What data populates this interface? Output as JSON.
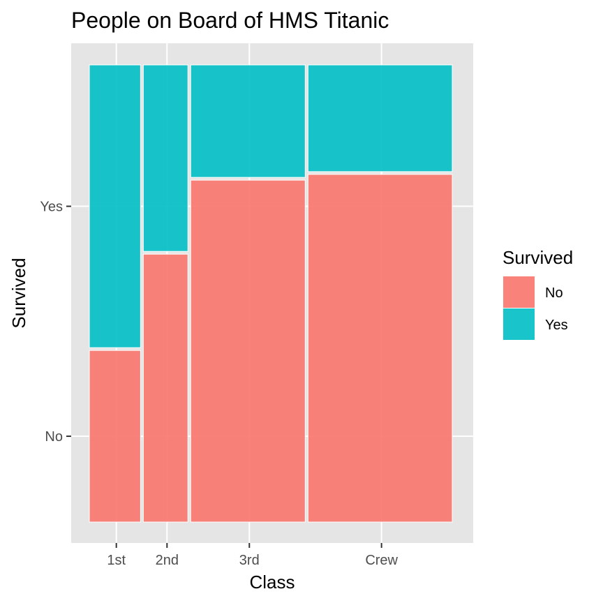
{
  "chart_data": {
    "type": "mosaic",
    "title": "People on Board of HMS Titanic",
    "xlabel": "Class",
    "ylabel": "Survived",
    "categories": [
      "1st",
      "2nd",
      "3rd",
      "Crew"
    ],
    "survival_levels": [
      "No",
      "Yes"
    ],
    "series": [
      {
        "name": "No",
        "values": [
          122,
          167,
          528,
          673
        ]
      },
      {
        "name": "Yes",
        "values": [
          203,
          118,
          178,
          212
        ]
      }
    ],
    "legend": {
      "title": "Survived",
      "placement": "right"
    },
    "grid": true,
    "colors": {
      "No": "#F8766D",
      "Yes": "#00BFC4",
      "panel": "#E5E5E5",
      "grid": "#FFFFFF"
    }
  }
}
